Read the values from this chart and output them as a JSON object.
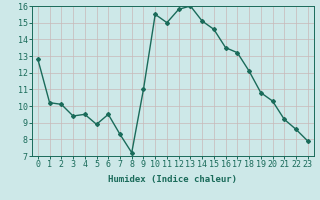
{
  "x": [
    0,
    1,
    2,
    3,
    4,
    5,
    6,
    7,
    8,
    9,
    10,
    11,
    12,
    13,
    14,
    15,
    16,
    17,
    18,
    19,
    20,
    21,
    22,
    23
  ],
  "y": [
    12.8,
    10.2,
    10.1,
    9.4,
    9.5,
    8.9,
    9.5,
    8.3,
    7.2,
    11.0,
    15.5,
    15.0,
    15.8,
    16.0,
    15.1,
    14.6,
    13.5,
    13.2,
    12.1,
    10.8,
    10.3,
    9.2,
    8.6,
    7.9
  ],
  "line_color": "#1a6b5a",
  "marker": "D",
  "marker_size": 2.0,
  "bg_color": "#cde8e8",
  "grid_color": "#b0d4d4",
  "xlabel": "Humidex (Indice chaleur)",
  "ylim": [
    7,
    16
  ],
  "xlim": [
    -0.5,
    23.5
  ],
  "yticks": [
    7,
    8,
    9,
    10,
    11,
    12,
    13,
    14,
    15,
    16
  ],
  "xticks": [
    0,
    1,
    2,
    3,
    4,
    5,
    6,
    7,
    8,
    9,
    10,
    11,
    12,
    13,
    14,
    15,
    16,
    17,
    18,
    19,
    20,
    21,
    22,
    23
  ],
  "xlabel_fontsize": 6.5,
  "tick_fontsize": 6.0,
  "line_width": 1.0
}
